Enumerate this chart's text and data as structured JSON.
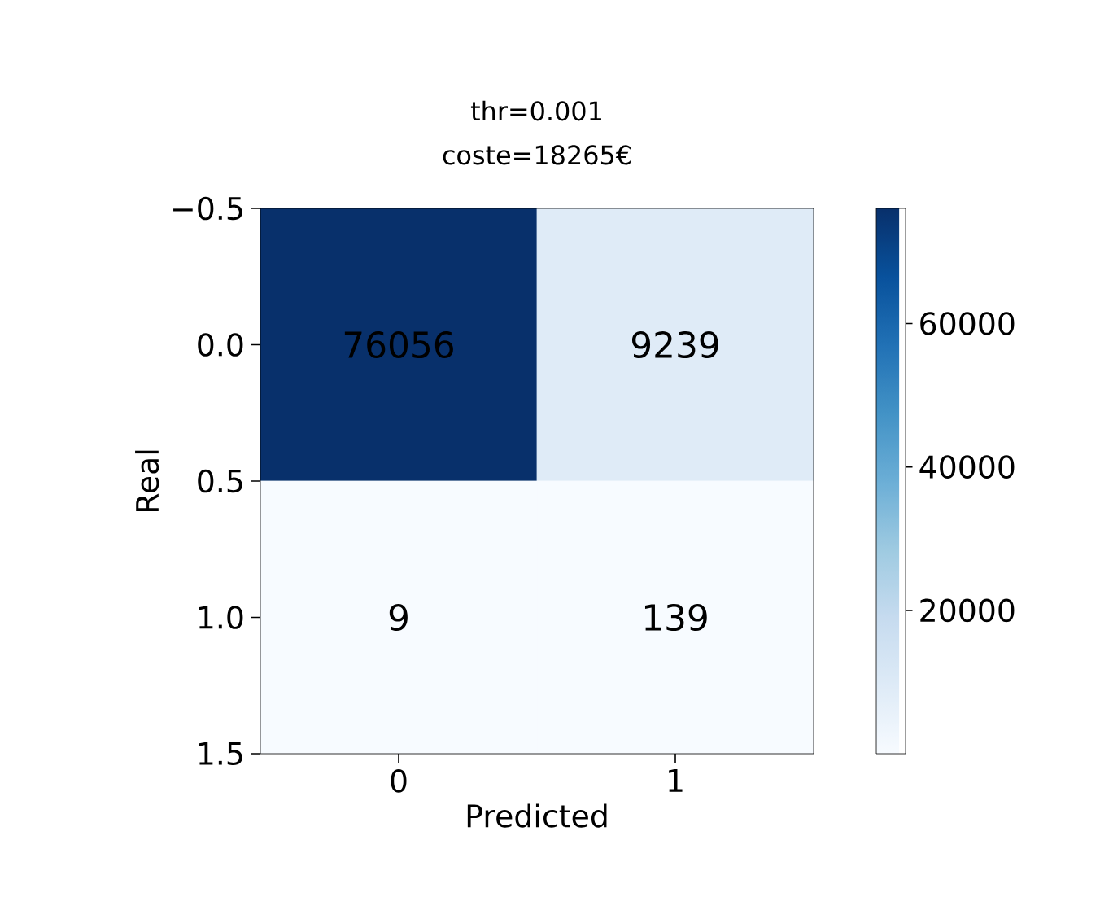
{
  "chart_data": {
    "type": "heatmap",
    "title": "thr=0.001",
    "subtitle": "coste=18265€",
    "xlabel": "Predicted",
    "ylabel": "Real",
    "categories": [
      "0",
      "1"
    ],
    "ylim": [
      1.5,
      -0.5
    ],
    "yticks": [
      {
        "value": -0.5,
        "label": "−0.5"
      },
      {
        "value": 0,
        "label": "0.0"
      },
      {
        "value": 0.5,
        "label": "0.5"
      },
      {
        "value": 1,
        "label": "1.0"
      },
      {
        "value": 1.5,
        "label": "1.5"
      }
    ],
    "cells": [
      [
        76056,
        9239
      ],
      [
        9,
        139
      ]
    ],
    "data_labels": true,
    "clim": [
      9,
      76056
    ],
    "cticks": [
      20000,
      40000,
      60000
    ]
  }
}
